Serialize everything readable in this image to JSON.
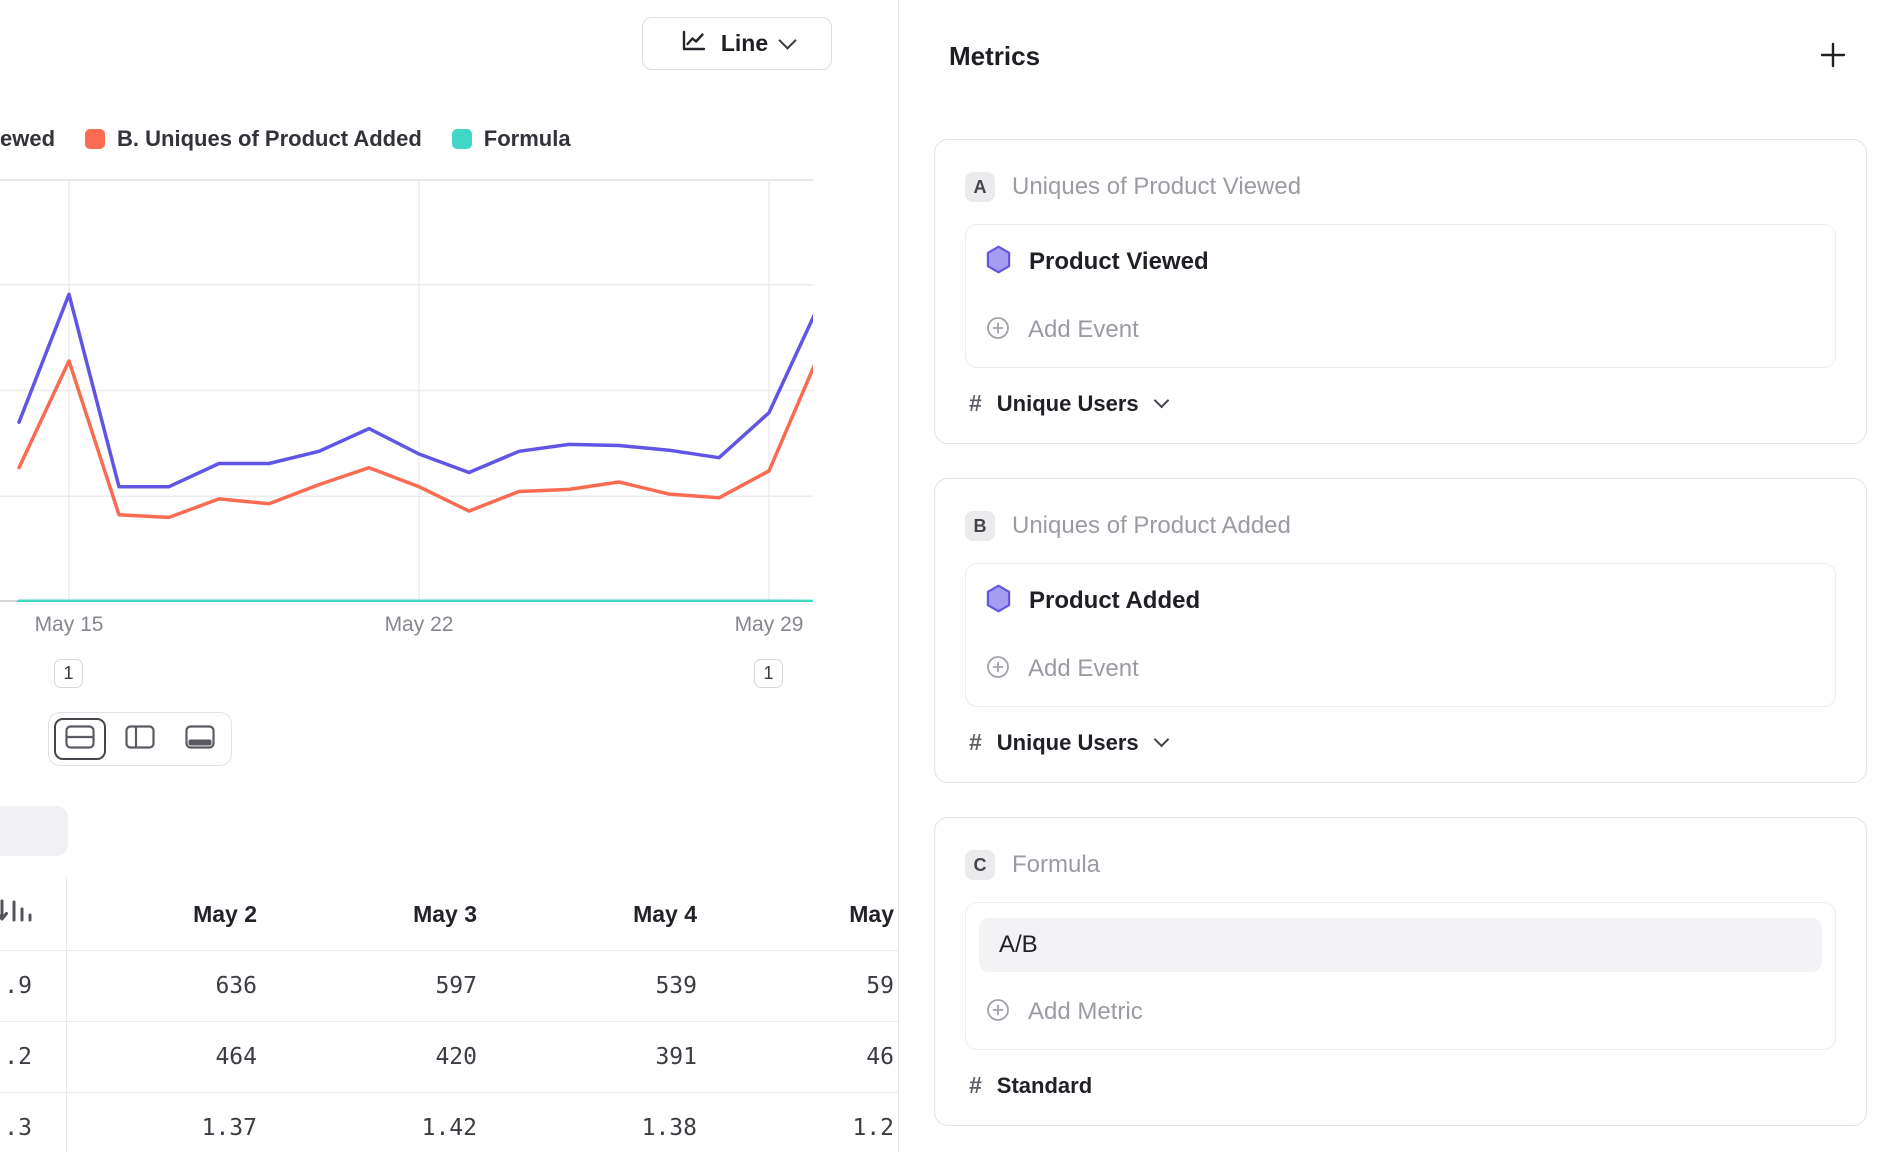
{
  "colors": {
    "series_a": "#6155e5",
    "series_b": "#fa6c51",
    "series_c": "#41d7c6",
    "event_icon_fill": "#a59df1",
    "event_icon_stroke": "#6458e2",
    "divider": "#e6e6e9",
    "muted_text": "#9b9ba3"
  },
  "left_panel": {
    "chart_type_button": {
      "label": "Line"
    },
    "legend": [
      {
        "label": "ewed",
        "color": ""
      },
      {
        "label": "B. Uniques of Product Added",
        "color": "#fa6c51"
      },
      {
        "label": "Formula",
        "color": "#41d7c6"
      }
    ],
    "view_toggle": [
      "split-horizontal",
      "split-vertical",
      "bottom-panel"
    ],
    "table": {
      "frozen_column": {
        "header_icon": "sort-descending-icon",
        "values": [
          ".9",
          ".2",
          ".3"
        ]
      },
      "columns": [
        "May 2",
        "May 3",
        "May 4",
        "May"
      ],
      "rows": [
        [
          "636",
          "597",
          "539",
          "59"
        ],
        [
          "464",
          "420",
          "391",
          "46"
        ],
        [
          "1.37",
          "1.42",
          "1.38",
          "1.2"
        ]
      ]
    }
  },
  "chart_data": {
    "type": "line",
    "x": [
      "May 14",
      "May 15",
      "May 16",
      "May 17",
      "May 18",
      "May 19",
      "May 20",
      "May 21",
      "May 22",
      "May 23",
      "May 24",
      "May 25",
      "May 26",
      "May 27",
      "May 28",
      "May 29",
      "May 30"
    ],
    "x_tick_labels": [
      "May 15",
      "May 22",
      "May 29"
    ],
    "ylim": [
      0,
      800
    ],
    "grid": true,
    "legend_position": "top",
    "series": [
      {
        "name": "A. Uniques of Product Viewed",
        "color": "#6155e5",
        "values": [
          340,
          582,
          218,
          218,
          262,
          262,
          285,
          328,
          280,
          245,
          285,
          298,
          296,
          287,
          273,
          358,
          562
        ]
      },
      {
        "name": "B. Uniques of Product Added",
        "color": "#fa6c51",
        "values": [
          254,
          456,
          165,
          160,
          195,
          186,
          222,
          254,
          218,
          172,
          209,
          213,
          227,
          204,
          197,
          248,
          468
        ]
      },
      {
        "name": "Formula",
        "color": "#41d7c6",
        "values": [
          1.34,
          1.27,
          1.32,
          1.36,
          1.34,
          1.41,
          1.28,
          1.29,
          1.28,
          1.42,
          1.36,
          1.4,
          1.3,
          1.41,
          1.39,
          1.44,
          1.2
        ]
      }
    ],
    "annotations": [
      {
        "label": "1",
        "x": "May 15"
      },
      {
        "label": "1",
        "x": "May 29"
      }
    ]
  },
  "metrics_panel": {
    "title": "Metrics",
    "add_icon": "plus-icon",
    "cards": [
      {
        "badge": "A",
        "title": "Uniques of Product Viewed",
        "event": "Product Viewed",
        "add_label": "Add Event",
        "measure_prefix": "#",
        "measure": "Unique Users"
      },
      {
        "badge": "B",
        "title": "Uniques of Product Added",
        "event": "Product Added",
        "add_label": "Add Event",
        "measure_prefix": "#",
        "measure": "Unique Users"
      },
      {
        "badge": "C",
        "title": "Formula",
        "formula_value": "A/B",
        "add_label": "Add Metric",
        "measure_prefix": "#",
        "measure": "Standard"
      }
    ]
  }
}
